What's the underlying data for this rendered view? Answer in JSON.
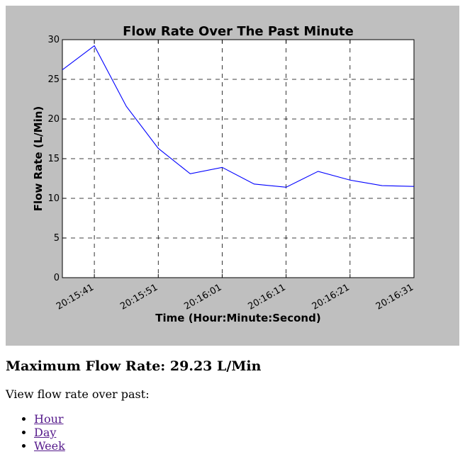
{
  "chart_data": {
    "type": "line",
    "title": "Flow Rate Over The Past Minute",
    "xlabel": "Time (Hour:Minute:Second)",
    "ylabel": "Flow Rate (L/Min)",
    "ylim": [
      0,
      30
    ],
    "yticks": [
      0,
      5,
      10,
      15,
      20,
      25,
      30
    ],
    "xlim": [
      "20:15:36",
      "20:16:31"
    ],
    "xticks": [
      "20:15:41",
      "20:15:51",
      "20:16:01",
      "20:16:11",
      "20:16:21",
      "20:16:31"
    ],
    "grid": true,
    "series": [
      {
        "color": "#0000ff",
        "x": [
          "20:15:36",
          "20:15:41",
          "20:15:46",
          "20:15:51",
          "20:15:56",
          "20:16:01",
          "20:16:06",
          "20:16:11",
          "20:16:16",
          "20:16:21",
          "20:16:26",
          "20:16:31"
        ],
        "y": [
          26.2,
          29.23,
          21.6,
          16.3,
          13.1,
          13.9,
          11.8,
          11.4,
          13.4,
          12.3,
          11.6,
          11.5
        ]
      }
    ]
  },
  "summary": {
    "max_label": "Maximum Flow Rate: 29.23 L/Min"
  },
  "view": {
    "prompt": "View flow rate over past:",
    "links": [
      "Hour",
      "Day",
      "Week"
    ]
  },
  "colors": {
    "figure_bg": "#bfbfbf",
    "plot_bg": "#ffffff",
    "line": "#0000ff",
    "link": "#551a8b"
  }
}
